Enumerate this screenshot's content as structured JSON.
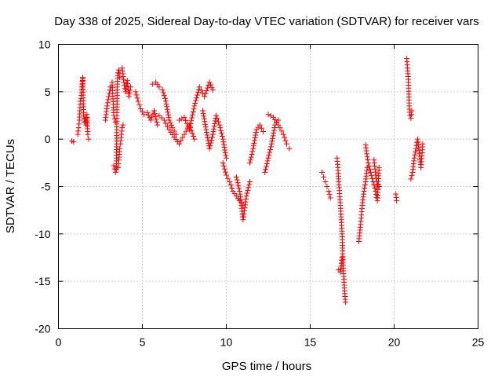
{
  "chart_data": {
    "type": "scatter",
    "title": "Day 338 of 2025, Sidereal Day-to-day VTEC variation (SDTVAR) for receiver vars",
    "xlabel": "GPS time / hours",
    "ylabel": "SDTVAR / TECUs",
    "xlim": [
      0,
      25
    ],
    "ylim": [
      -20,
      10
    ],
    "xticks": [
      0,
      5,
      10,
      15,
      20,
      25
    ],
    "yticks": [
      -20,
      -15,
      -10,
      -5,
      0,
      5,
      10
    ],
    "grid": true,
    "marker": "+",
    "series": [
      {
        "name": "vars",
        "color": "#ff0000",
        "segments": [
          {
            "x": [
              0.8,
              0.9
            ],
            "y": [
              -0.2,
              -0.3
            ]
          },
          {
            "x": [
              1.15,
              1.2,
              1.25,
              1.3,
              1.35,
              1.4,
              1.45
            ],
            "y": [
              0.5,
              1.2,
              2.0,
              4.0,
              4.3,
              5.5,
              6.4
            ]
          },
          {
            "x": [
              1.45,
              1.5,
              1.55,
              1.6,
              1.65,
              1.7,
              1.75,
              1.8
            ],
            "y": [
              6.5,
              2.5,
              1.8,
              2.2,
              1.5,
              2.6,
              0.5,
              0.0
            ]
          },
          {
            "x": [
              2.8,
              2.9,
              3.0,
              3.1,
              3.2,
              3.3,
              3.4
            ],
            "y": [
              2.0,
              3.5,
              4.5,
              5.5,
              6.0,
              2.5,
              1.8
            ]
          },
          {
            "x": [
              3.3,
              3.4,
              3.45,
              3.5,
              3.55,
              3.6,
              3.65
            ],
            "y": [
              -2.8,
              -3.5,
              -3.2,
              5.5,
              7.0,
              7.3,
              6.5
            ]
          },
          {
            "x": [
              3.55,
              3.6,
              3.65,
              3.7,
              3.75,
              3.8,
              3.85
            ],
            "y": [
              -3.0,
              -2.2,
              -1.0,
              -0.5,
              0.5,
              1.2,
              1.5
            ]
          },
          {
            "x": [
              3.8,
              3.9,
              4.0,
              4.1,
              4.2,
              4.3
            ],
            "y": [
              7.5,
              6.0,
              5.0,
              6.2,
              4.5,
              5.5
            ]
          },
          {
            "x": [
              4.6,
              4.75,
              4.9,
              5.1,
              5.3,
              5.5,
              5.7,
              5.9
            ],
            "y": [
              5.0,
              4.0,
              3.2,
              2.6,
              2.8,
              2.0,
              3.0,
              1.5
            ]
          },
          {
            "x": [
              5.6,
              5.8,
              6.0,
              6.2,
              6.4,
              6.6,
              6.8,
              7.0
            ],
            "y": [
              5.8,
              6.0,
              5.5,
              5.2,
              4.0,
              2.0,
              1.2,
              0.5
            ]
          },
          {
            "x": [
              6.0,
              6.3,
              6.6,
              6.9,
              7.2,
              7.5,
              7.8,
              8.1
            ],
            "y": [
              2.5,
              2.0,
              1.0,
              0.2,
              -0.5,
              0.5,
              1.5,
              0.0
            ]
          },
          {
            "x": [
              7.2,
              7.5,
              7.8,
              8.1,
              8.4,
              8.7,
              9.0,
              9.2
            ],
            "y": [
              2.0,
              2.3,
              1.0,
              3.5,
              5.5,
              4.5,
              6.0,
              5.2
            ]
          },
          {
            "x": [
              8.6,
              8.8,
              9.0,
              9.2,
              9.4,
              9.6,
              9.8,
              10.0
            ],
            "y": [
              3.0,
              1.0,
              -1.0,
              0.5,
              2.5,
              1.5,
              0.0,
              -2.0
            ]
          },
          {
            "x": [
              9.8,
              10.0,
              10.2,
              10.4,
              10.6,
              10.8,
              11.0
            ],
            "y": [
              -2.5,
              -3.8,
              -4.5,
              -5.5,
              -6.0,
              -6.5,
              -7.0
            ]
          },
          {
            "x": [
              10.6,
              10.8,
              11.0,
              11.2,
              11.4
            ],
            "y": [
              -4.0,
              -5.5,
              -8.5,
              -6.0,
              -4.5
            ]
          },
          {
            "x": [
              11.4,
              11.6,
              11.8,
              12.0,
              12.2
            ],
            "y": [
              -2.5,
              -1.0,
              1.0,
              1.5,
              0.8
            ]
          },
          {
            "x": [
              12.3,
              12.5,
              12.7,
              12.9,
              13.1
            ],
            "y": [
              -3.5,
              -2.0,
              -0.5,
              1.5,
              2.0
            ]
          },
          {
            "x": [
              12.5,
              12.8,
              13.0,
              13.2,
              13.4,
              13.6,
              13.75
            ],
            "y": [
              2.6,
              2.3,
              1.8,
              1.2,
              0.5,
              -0.5,
              -1.0
            ]
          },
          {
            "x": [
              15.7,
              15.8,
              15.9,
              16.0,
              16.1,
              16.2
            ],
            "y": [
              -3.5,
              -4.0,
              -4.5,
              -5.0,
              -5.5,
              -6.2
            ]
          },
          {
            "x": [
              16.6,
              16.65,
              16.7,
              16.8,
              16.9,
              16.95,
              17.0,
              17.05,
              17.1
            ],
            "y": [
              -2.0,
              -3.0,
              -4.5,
              -7.0,
              -10.0,
              -13.0,
              -14.5,
              -16.0,
              -17.2
            ]
          },
          {
            "x": [
              16.7,
              16.8,
              16.9
            ],
            "y": [
              -13.8,
              -14.0,
              -12.5
            ]
          },
          {
            "x": [
              17.9,
              18.0,
              18.1,
              18.2,
              18.3,
              18.4
            ],
            "y": [
              -10.8,
              -9.0,
              -7.0,
              -5.5,
              -4.5,
              -3.0
            ]
          },
          {
            "x": [
              18.3,
              18.45,
              18.6,
              18.75,
              18.9,
              19.0,
              19.1
            ],
            "y": [
              -0.6,
              -2.5,
              -3.5,
              -4.5,
              -5.5,
              -6.5,
              -3.0
            ]
          },
          {
            "x": [
              18.8,
              18.9,
              19.0,
              19.1
            ],
            "y": [
              -2.2,
              -3.8,
              -4.8,
              -5.0
            ]
          },
          {
            "x": [
              20.1,
              20.15
            ],
            "y": [
              -5.8,
              -6.5
            ]
          },
          {
            "x": [
              20.75,
              20.8,
              20.85,
              20.9,
              20.95,
              21.0,
              21.05
            ],
            "y": [
              8.5,
              7.5,
              6.0,
              3.5,
              2.5,
              2.2,
              3.0
            ]
          },
          {
            "x": [
              21.0,
              21.1,
              21.2,
              21.3,
              21.4,
              21.5,
              21.6,
              21.7
            ],
            "y": [
              -4.2,
              -3.5,
              -2.0,
              -1.0,
              0.0,
              -1.5,
              -3.0,
              -0.5
            ]
          }
        ]
      }
    ]
  }
}
